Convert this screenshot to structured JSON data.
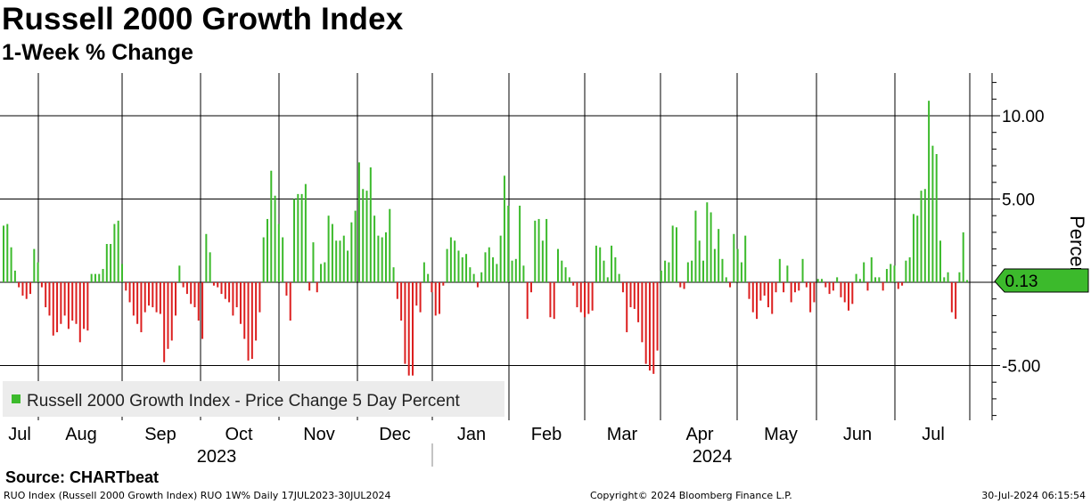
{
  "title": "Russell 2000 Growth Index",
  "subtitle": "1-Week % Change",
  "footer": {
    "source": "Source:  CHARTbeat",
    "left": "RUO Index (Russell 2000 Growth Index) RUO 1W% Daily 17JUL2023-30JUL2024",
    "center": "Copyright© 2024 Bloomberg Finance L.P.",
    "right": "30-Jul-2024 06:15:54"
  },
  "colors": {
    "positive": "#3cba2c",
    "negative": "#dc1f1f",
    "badge": "#3cba2c",
    "legend_bg": "#ececec",
    "grid": "#000000"
  },
  "chart_data": {
    "type": "bar",
    "title": "Russell 2000 Growth Index",
    "subtitle": "1-Week % Change",
    "ylabel": "Percent",
    "ylim": [
      -8.2,
      12.5
    ],
    "yticks": [
      10.0,
      5.0,
      -5.0
    ],
    "ytick_labels": [
      "10.00",
      "5.00",
      "-5.00"
    ],
    "month_labels": [
      "Jul",
      "Aug",
      "Sep",
      "Oct",
      "Nov",
      "Dec",
      "Jan",
      "Feb",
      "Mar",
      "Apr",
      "May",
      "Jun",
      "Jul"
    ],
    "year_labels": [
      "2023",
      "2024"
    ],
    "legend": "Russell 2000 Growth Index - Price Change 5 Day Percent",
    "last_value": 0.13,
    "last_value_label": "0.13",
    "series": [
      {
        "name": "Russell 2000 Growth Index - Price Change 5 Day Percent",
        "values": [
          3.4,
          3.5,
          2.1,
          0.7,
          -0.3,
          -0.8,
          -1.0,
          -0.7,
          2.0,
          1.2,
          -0.3,
          -1.5,
          -2.0,
          -3.2,
          -3.0,
          -2.5,
          -2.0,
          -2.8,
          -2.3,
          -2.5,
          -3.6,
          -2.8,
          -2.9,
          0.5,
          0.5,
          0.5,
          0.8,
          2.3,
          2.3,
          3.5,
          3.7,
          1.1,
          -0.5,
          -1.2,
          -2.0,
          -2.5,
          -3.0,
          -1.8,
          -1.4,
          -1.5,
          -1.8,
          -1.9,
          -4.8,
          -4.0,
          -3.5,
          -2.0,
          1.0,
          -0.3,
          -0.7,
          -1.3,
          -1.5,
          -2.3,
          -3.4,
          2.9,
          1.8,
          -0.2,
          -0.3,
          -0.7,
          -1.0,
          -1.2,
          -2.0,
          -1.5,
          -2.5,
          -3.4,
          -4.7,
          -4.6,
          -3.5,
          -1.8,
          2.7,
          3.8,
          6.7,
          5.2,
          3.5,
          2.7,
          -0.8,
          -2.3,
          5.0,
          5.3,
          5.3,
          5.9,
          -0.5,
          2.4,
          -0.6,
          1.1,
          1.2,
          4.0,
          3.5,
          2.5,
          2.5,
          2.8,
          1.9,
          3.6,
          4.3,
          7.2,
          5.6,
          5.5,
          6.9,
          4.0,
          2.8,
          2.7,
          3.0,
          4.4,
          0.9,
          -1.0,
          -2.3,
          -4.9,
          -5.6,
          -5.6,
          -1.4,
          -1.8,
          1.2,
          0.5,
          -0.6,
          -2.0,
          -1.9,
          -0.2,
          2.0,
          2.7,
          2.5,
          1.9,
          1.5,
          1.7,
          0.9,
          0.5,
          -0.3,
          0.6,
          1.8,
          2.1,
          1.5,
          1.1,
          2.8,
          6.4,
          4.6,
          1.3,
          1.4,
          4.6,
          1.0,
          -2.2,
          -0.6,
          3.7,
          3.8,
          2.5,
          3.8,
          -2.1,
          -2.2,
          2.0,
          1.3,
          0.9,
          0.3,
          -0.2,
          -1.5,
          -1.8,
          -2.1,
          -1.9,
          -1.7,
          2.2,
          2.1,
          1.3,
          0.3,
          2.2,
          1.5,
          0.5,
          -0.6,
          -3.0,
          -1.5,
          -1.6,
          -2.4,
          -3.6,
          -4.9,
          -5.3,
          -5.5,
          -4.1,
          0.7,
          1.3,
          1.2,
          3.4,
          3.3,
          -0.3,
          -0.4,
          1.2,
          1.3,
          4.3,
          2.5,
          1.3,
          4.8,
          4.2,
          2.0,
          3.2,
          1.4,
          0.3,
          -0.3,
          2.9,
          2.0,
          1.2,
          2.8,
          -1.0,
          -1.8,
          -2.2,
          -1.1,
          -0.8,
          -1.5,
          -1.9,
          -0.6,
          1.4,
          -0.6,
          1.0,
          -1.2,
          -0.6,
          -0.5,
          1.4,
          -0.3,
          -1.8,
          -1.2,
          0.2,
          0.2,
          -0.3,
          -0.7,
          -0.5,
          0.3,
          -0.9,
          -1.2,
          -1.7,
          -1.3,
          0.5,
          0.2,
          1.2,
          -0.5,
          1.5,
          0.3,
          0.3,
          -0.5,
          0.8,
          1.1,
          1.0,
          -0.4,
          -0.2,
          1.3,
          1.5,
          4.1,
          4.0,
          5.5,
          5.6,
          10.9,
          8.2,
          7.7,
          2.5,
          0.3,
          0.6,
          -1.8,
          -2.2,
          0.6,
          3.0,
          0.13
        ]
      }
    ]
  }
}
